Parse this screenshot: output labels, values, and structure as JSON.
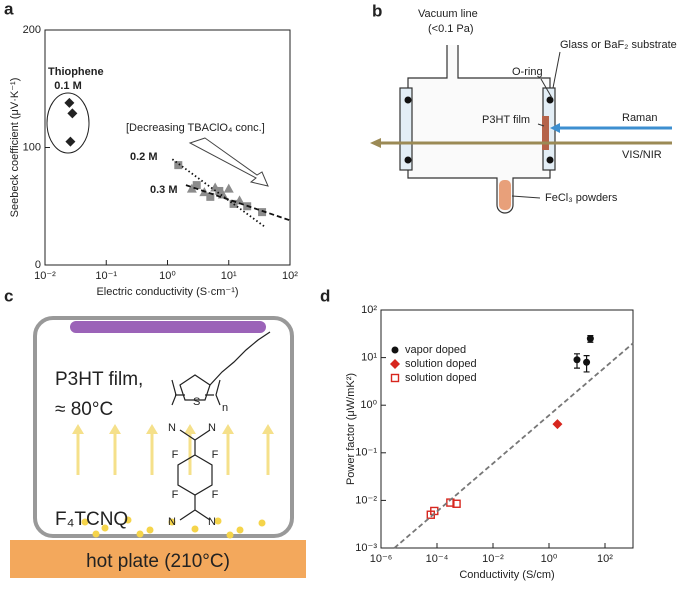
{
  "chart_data": [
    {
      "type": "scatter",
      "panel": "a",
      "xlabel": "Electric conductivity (S·cm⁻¹)",
      "ylabel": "Seebeck coefficient  (μV·K⁻¹)",
      "xscale": "log",
      "xlim": [
        0.01,
        100
      ],
      "xticks": [
        {
          "value": 0.01,
          "label": "10⁻²"
        },
        {
          "value": 0.1,
          "label": "10⁻¹"
        },
        {
          "value": 1,
          "label": "10⁰"
        },
        {
          "value": 10,
          "label": "10¹"
        },
        {
          "value": 100,
          "label": "10²"
        }
      ],
      "ylim": [
        0,
        200
      ],
      "yticks": [
        0,
        100,
        200
      ],
      "annotations": [
        "Thiophene",
        "0.1 M",
        "[Decreasing TBAClO₄ conc.]",
        "0.2 M",
        "0.3 M"
      ],
      "series": [
        {
          "marker": "diamond",
          "color": "#222222",
          "x": [
            0.025,
            0.028,
            0.026
          ],
          "values": [
            138,
            129,
            105
          ]
        },
        {
          "marker": "square",
          "color": "#8c8c8c",
          "x": [
            1.5,
            3,
            5,
            7,
            12,
            20,
            35
          ],
          "values": [
            85,
            68,
            58,
            63,
            52,
            50,
            45
          ]
        },
        {
          "marker": "triangle",
          "color": "#8c8c8c",
          "x": [
            2.5,
            4,
            6,
            8,
            10,
            15
          ],
          "values": [
            65,
            62,
            66,
            60,
            65,
            55
          ]
        },
        {
          "marker": "line",
          "style": "dotted",
          "color": "#111111",
          "x": [
            1.2,
            40
          ],
          "values": [
            90,
            32
          ]
        },
        {
          "marker": "line",
          "style": "dashed",
          "color": "#111111",
          "x": [
            2,
            100
          ],
          "values": [
            68,
            38
          ]
        }
      ]
    },
    {
      "type": "scatter",
      "panel": "d",
      "xlabel": "Conductivity (S/cm)",
      "ylabel": "Power factor (μW/mK²)",
      "xscale": "log",
      "yscale": "log",
      "xlim": [
        1e-06,
        1000
      ],
      "ylim": [
        0.001,
        100
      ],
      "xticks": [
        {
          "value": 1e-06,
          "label": "10⁻⁶"
        },
        {
          "value": 0.0001,
          "label": "10⁻⁴"
        },
        {
          "value": 0.01,
          "label": "10⁻²"
        },
        {
          "value": 1,
          "label": "10⁰"
        },
        {
          "value": 100,
          "label": "10²"
        }
      ],
      "yticks": [
        {
          "value": 0.001,
          "label": "10⁻³"
        },
        {
          "value": 0.01,
          "label": "10⁻²"
        },
        {
          "value": 0.1,
          "label": "10⁻¹"
        },
        {
          "value": 1,
          "label": "10⁰"
        },
        {
          "value": 10,
          "label": "10¹"
        },
        {
          "value": 100,
          "label": "10²"
        }
      ],
      "legend": "upper left",
      "series": [
        {
          "name": "vapor doped",
          "marker": "circle",
          "color": "#111111",
          "x": [
            10,
            22,
            30
          ],
          "values": [
            9,
            8,
            25
          ],
          "errors": [
            3,
            3,
            4
          ]
        },
        {
          "name": "solution doped",
          "marker": "diamond",
          "color": "#d7261e",
          "x": [
            2
          ],
          "values": [
            0.4
          ]
        },
        {
          "name": "solution doped",
          "marker": "open-square",
          "color": "#d7261e",
          "x": [
            6e-05,
            8e-05,
            0.0003,
            0.0005
          ],
          "values": [
            0.005,
            0.006,
            0.009,
            0.0085
          ]
        },
        {
          "marker": "line",
          "style": "dashed",
          "color": "#777777",
          "x": [
            3e-06,
            1000
          ],
          "values": [
            0.001,
            20
          ]
        }
      ]
    }
  ],
  "diagrams": {
    "panel_b": {
      "label": "b",
      "vacuum_line": "Vacuum line",
      "pressure": "(<0.1 Pa)",
      "substrate": "Glass or BaF₂ substrate",
      "oring": "O-ring",
      "film": "P3HT film",
      "raman": "Raman",
      "visnir": "VIS/NIR",
      "powder": "FeCl₃ powders"
    },
    "panel_c": {
      "label": "c",
      "film": "P3HT film,",
      "temp": "≈ 80°C",
      "dopant": "F₄TCNQ",
      "hotplate": "hot plate (210°C)",
      "sulfur": "S",
      "repeat": "n",
      "atoms": [
        "N",
        "N",
        "N",
        "N",
        "F",
        "F",
        "F",
        "F"
      ]
    },
    "panel_d_label": "d"
  }
}
